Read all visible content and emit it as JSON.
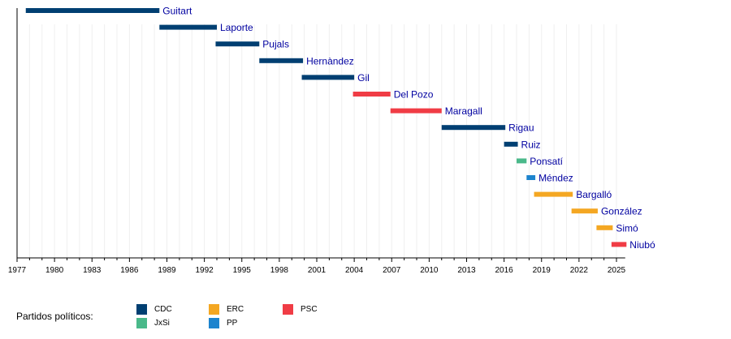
{
  "chart_data": {
    "type": "bar",
    "orientation": "horizontal-timeline",
    "title": "",
    "xlabel": "",
    "ylabel": "",
    "xlim": [
      1977,
      2025.7
    ],
    "x_ticks": [
      1977,
      1980,
      1983,
      1986,
      1989,
      1992,
      1995,
      1998,
      2001,
      2004,
      2007,
      2010,
      2013,
      2016,
      2019,
      2022,
      2025
    ],
    "minor_tick_step": 1,
    "grid": "vertical-minor",
    "legend_position": "bottom-left",
    "parties": {
      "CDC": "#003f72",
      "JxSi": "#4ab98a",
      "ERC": "#f4a722",
      "PP": "#1d84ce",
      "PSC": "#f03c45"
    },
    "series": [
      {
        "name": "Guitart",
        "party": "CDC",
        "start": 1977.7,
        "end": 1988.4
      },
      {
        "name": "Laporte",
        "party": "CDC",
        "start": 1988.4,
        "end": 1993.0
      },
      {
        "name": "Pujals",
        "party": "CDC",
        "start": 1992.9,
        "end": 1996.4
      },
      {
        "name": "Hernàndez",
        "party": "CDC",
        "start": 1996.4,
        "end": 1999.9
      },
      {
        "name": "Gil",
        "party": "CDC",
        "start": 1999.8,
        "end": 2004.0
      },
      {
        "name": "Del Pozo",
        "party": "PSC",
        "start": 2003.9,
        "end": 2006.9
      },
      {
        "name": "Maragall",
        "party": "PSC",
        "start": 2006.9,
        "end": 2011.0
      },
      {
        "name": "Rigau",
        "party": "CDC",
        "start": 2011.0,
        "end": 2016.1
      },
      {
        "name": "Ruiz",
        "party": "CDC",
        "start": 2016.0,
        "end": 2017.1
      },
      {
        "name": "Ponsatí",
        "party": "JxSi",
        "start": 2017.0,
        "end": 2017.8
      },
      {
        "name": "Méndez",
        "party": "PP",
        "start": 2017.8,
        "end": 2018.5
      },
      {
        "name": "Bargalló",
        "party": "ERC",
        "start": 2018.4,
        "end": 2021.5
      },
      {
        "name": "González",
        "party": "ERC",
        "start": 2021.4,
        "end": 2023.5
      },
      {
        "name": "Simó",
        "party": "ERC",
        "start": 2023.4,
        "end": 2024.7
      },
      {
        "name": "Niubó",
        "party": "PSC",
        "start": 2024.6,
        "end": 2025.8
      }
    ]
  },
  "legend": {
    "title": "Partidos políticos:",
    "items": [
      {
        "label": "CDC",
        "color": "#003f72"
      },
      {
        "label": "JxSi",
        "color": "#4ab98a"
      },
      {
        "label": "ERC",
        "color": "#f4a722"
      },
      {
        "label": "PP",
        "color": "#1d84ce"
      },
      {
        "label": "PSC",
        "color": "#f03c45"
      }
    ]
  }
}
